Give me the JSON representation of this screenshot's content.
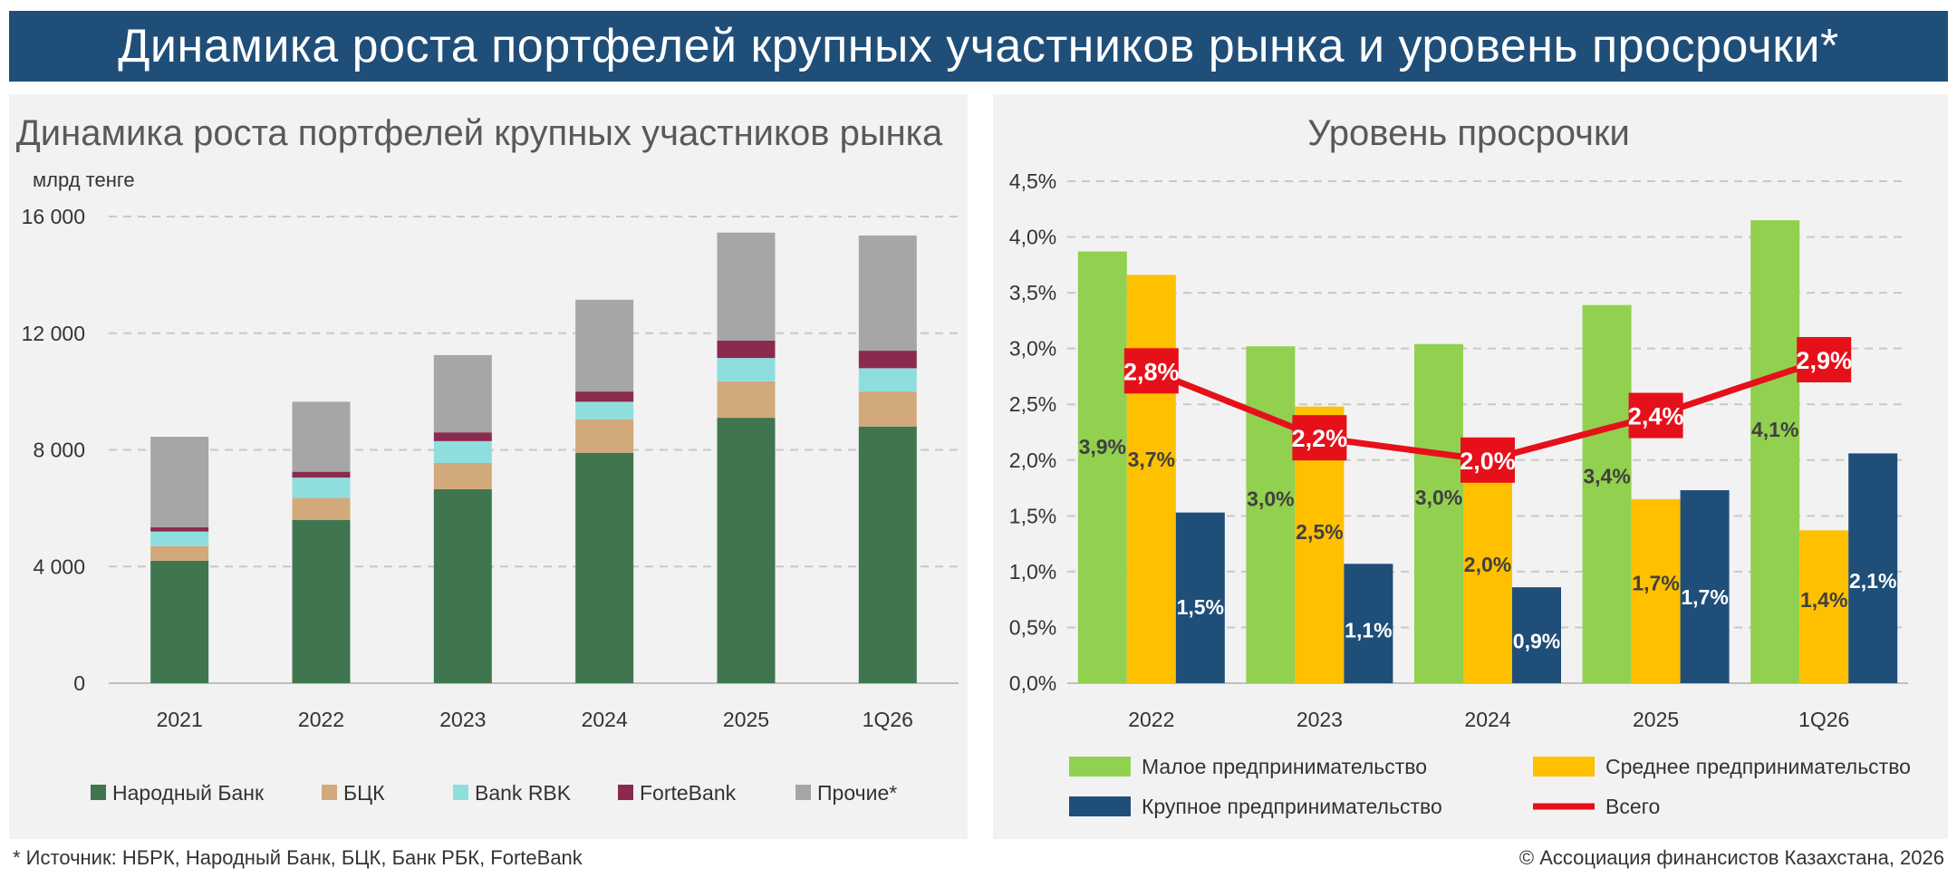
{
  "page": {
    "title": "Динамика роста портфелей крупных участников рынка и уровень просрочки*",
    "footnote": "* Источник: НБРК, Народный Банк, БЦК, Банк РБК, ForteBank",
    "copyright": "© Ассоциация финансистов Казахстана, 2026"
  },
  "chart_data": [
    {
      "type": "bar",
      "stacked": true,
      "title": "Динамика роста портфелей крупных участников рынка",
      "ylabel": "млрд тенге",
      "categories": [
        "2021",
        "2022",
        "2023",
        "2024",
        "2025",
        "1Q26"
      ],
      "ylim": [
        0,
        16000
      ],
      "yticks": [
        0,
        4000,
        8000,
        12000,
        16000
      ],
      "ytick_labels": [
        "0",
        "4 000",
        "8 000",
        "12 000",
        "16 000"
      ],
      "grid": true,
      "legend_position": "bottom",
      "series": [
        {
          "name": "Народный Банк",
          "color": "#3f7650",
          "values": [
            4200,
            5600,
            6650,
            7900,
            9100,
            8800
          ]
        },
        {
          "name": "БЦК",
          "color": "#d2a97b",
          "values": [
            500,
            750,
            900,
            1150,
            1250,
            1200
          ]
        },
        {
          "name": "Bank RBK",
          "color": "#8fdede",
          "values": [
            500,
            700,
            750,
            600,
            800,
            800
          ]
        },
        {
          "name": "ForteBank",
          "color": "#8b2a4f",
          "values": [
            150,
            200,
            300,
            350,
            600,
            600
          ]
        },
        {
          "name": "Прочие*",
          "color": "#a6a6a6",
          "values": [
            3100,
            2400,
            2650,
            3150,
            3700,
            3950
          ]
        }
      ]
    },
    {
      "type": "bar",
      "title": "Уровень просрочки",
      "categories": [
        "2022",
        "2023",
        "2024",
        "2025",
        "1Q26"
      ],
      "ylim": [
        0,
        4.5
      ],
      "yticks": [
        0,
        0.5,
        1.0,
        1.5,
        2.0,
        2.5,
        3.0,
        3.5,
        4.0,
        4.5
      ],
      "ytick_labels": [
        "0,0%",
        "0,5%",
        "1,0%",
        "1,5%",
        "2,0%",
        "2,5%",
        "3,0%",
        "3,5%",
        "4,0%",
        "4,5%"
      ],
      "grid": true,
      "legend_position": "bottom",
      "series": [
        {
          "name": "Малое предпринимательство",
          "color": "#92d050",
          "values": [
            3.87,
            3.02,
            3.04,
            3.39,
            4.15
          ],
          "labels": [
            "3,9%",
            "3,0%",
            "3,0%",
            "3,4%",
            "4,1%"
          ]
        },
        {
          "name": "Среднее предпринимательство",
          "color": "#ffc000",
          "values": [
            3.66,
            2.48,
            1.95,
            1.65,
            1.37
          ],
          "labels": [
            "3,7%",
            "2,5%",
            "2,0%",
            "1,7%",
            "1,4%"
          ]
        },
        {
          "name": "Крупное предпринимательство",
          "color": "#1f4e79",
          "values": [
            1.53,
            1.07,
            0.86,
            1.73,
            2.06
          ],
          "labels": [
            "1,5%",
            "1,1%",
            "0,9%",
            "1,7%",
            "2,1%"
          ]
        }
      ],
      "line_series": {
        "name": "Всего",
        "color": "#e6101a",
        "values": [
          2.8,
          2.2,
          2.0,
          2.4,
          2.9
        ],
        "labels": [
          "2,8%",
          "2,2%",
          "2,0%",
          "2,4%",
          "2,9%"
        ]
      }
    }
  ]
}
